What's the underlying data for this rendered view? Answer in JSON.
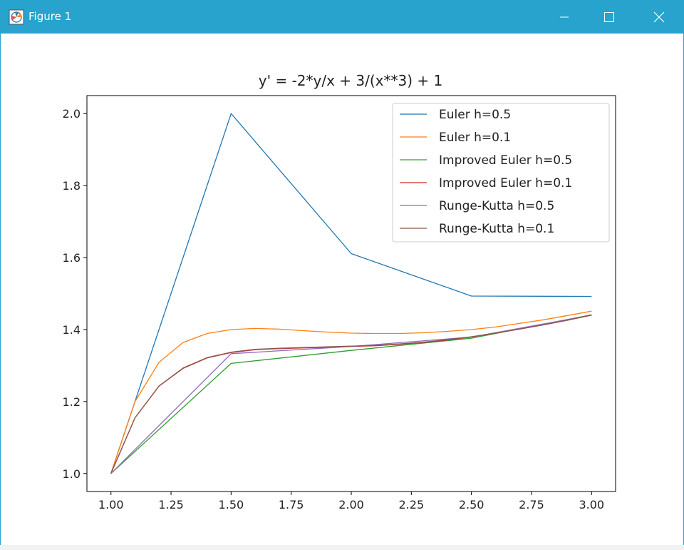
{
  "window": {
    "title": "Figure 1",
    "icon": "matplotlib-figure-icon",
    "controls": [
      "minimize-icon",
      "maximize-icon",
      "close-icon"
    ]
  },
  "chart_data": {
    "type": "line",
    "title": "y' = -2*y/x + 3/(x**3) + 1",
    "xlabel": "",
    "ylabel": "",
    "xlim": [
      0.9,
      3.1
    ],
    "ylim": [
      0.95,
      2.05
    ],
    "xticks": [
      "1.00",
      "1.25",
      "1.50",
      "1.75",
      "2.00",
      "2.25",
      "2.50",
      "2.75",
      "3.00"
    ],
    "yticks": [
      "1.0",
      "1.2",
      "1.4",
      "1.6",
      "1.8",
      "2.0"
    ],
    "grid": false,
    "legend_position": "upper right",
    "series": [
      {
        "name": "Euler h=0.5",
        "color": "#1f77b4",
        "x": [
          1.0,
          1.5,
          2.0,
          2.5,
          3.0
        ],
        "y": [
          1.0,
          2.0,
          1.611,
          1.493,
          1.492
        ]
      },
      {
        "name": "Euler h=0.1",
        "color": "#ff7f0e",
        "x": [
          1.0,
          1.1,
          1.2,
          1.3,
          1.4,
          1.5,
          1.6,
          1.7,
          1.8,
          1.9,
          2.0,
          2.1,
          2.2,
          2.3,
          2.4,
          2.5,
          2.6,
          2.7,
          2.8,
          2.9,
          3.0
        ],
        "y": [
          1.0,
          1.2,
          1.309,
          1.364,
          1.389,
          1.4,
          1.403,
          1.401,
          1.397,
          1.393,
          1.39,
          1.389,
          1.389,
          1.391,
          1.395,
          1.4,
          1.407,
          1.417,
          1.427,
          1.439,
          1.451
        ]
      },
      {
        "name": "Improved Euler h=0.5",
        "color": "#2ca02c",
        "x": [
          1.0,
          1.5,
          2.0,
          2.5,
          3.0
        ],
        "y": [
          1.0,
          1.306,
          1.342,
          1.376,
          1.441
        ]
      },
      {
        "name": "Improved Euler h=0.1",
        "color": "#d62728",
        "x": [
          1.0,
          1.1,
          1.2,
          1.3,
          1.4,
          1.5,
          1.6,
          1.7,
          1.8,
          1.9,
          2.0,
          2.1,
          2.2,
          2.3,
          2.4,
          2.5,
          2.6,
          2.7,
          2.8,
          2.9,
          3.0
        ],
        "y": [
          1.0,
          1.155,
          1.243,
          1.292,
          1.321,
          1.336,
          1.344,
          1.347,
          1.349,
          1.351,
          1.353,
          1.355,
          1.359,
          1.364,
          1.371,
          1.379,
          1.39,
          1.401,
          1.413,
          1.426,
          1.44
        ]
      },
      {
        "name": "Runge-Kutta h=0.5",
        "color": "#9467bd",
        "x": [
          1.0,
          1.5,
          2.0,
          2.5,
          3.0
        ],
        "y": [
          1.0,
          1.333,
          1.353,
          1.379,
          1.44
        ]
      },
      {
        "name": "Runge-Kutta h=0.1",
        "color": "#8c564b",
        "x": [
          1.0,
          1.1,
          1.2,
          1.3,
          1.4,
          1.5,
          1.6,
          1.7,
          1.8,
          1.9,
          2.0,
          2.1,
          2.2,
          2.3,
          2.4,
          2.5,
          2.6,
          2.7,
          2.8,
          2.9,
          3.0
        ],
        "y": [
          1.0,
          1.155,
          1.243,
          1.293,
          1.322,
          1.337,
          1.345,
          1.348,
          1.35,
          1.352,
          1.354,
          1.356,
          1.36,
          1.365,
          1.372,
          1.38,
          1.39,
          1.401,
          1.413,
          1.426,
          1.44
        ]
      }
    ]
  }
}
